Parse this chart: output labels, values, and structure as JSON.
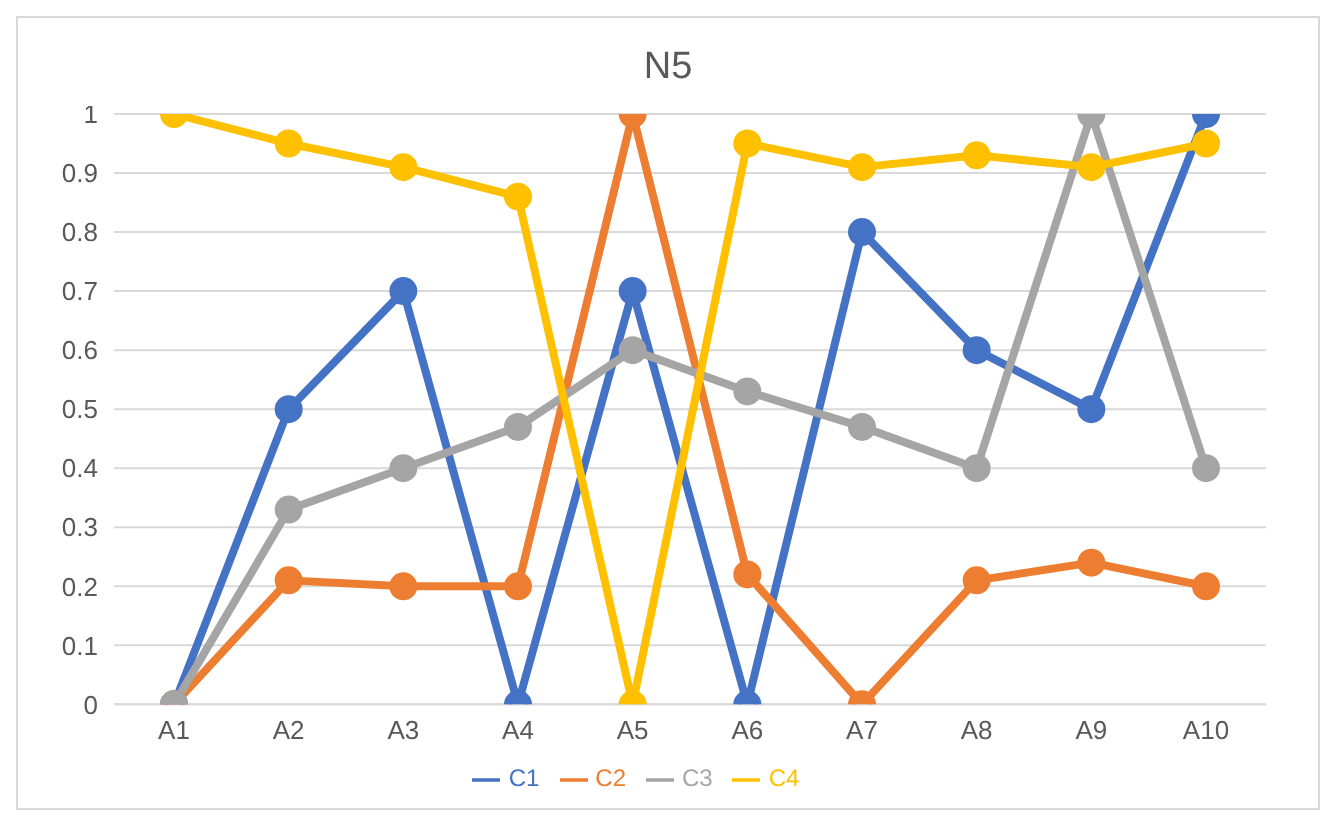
{
  "chart_data": {
    "type": "line",
    "title": "N5",
    "categories": [
      "A1",
      "A2",
      "A3",
      "A4",
      "A5",
      "A6",
      "A7",
      "A8",
      "A9",
      "A10"
    ],
    "series": [
      {
        "name": "C1",
        "color": "#4472c4",
        "values": [
          0,
          0.5,
          0.7,
          0,
          0.7,
          0,
          0.8,
          0.6,
          0.5,
          1
        ]
      },
      {
        "name": "C2",
        "color": "#ed7d31",
        "values": [
          0,
          0.21,
          0.2,
          0.2,
          1,
          0.22,
          0,
          0.21,
          0.24,
          0.2
        ]
      },
      {
        "name": "C3",
        "color": "#a5a5a5",
        "values": [
          0,
          0.33,
          0.4,
          0.47,
          0.6,
          0.53,
          0.47,
          0.4,
          1,
          0.4
        ]
      },
      {
        "name": "C4",
        "color": "#ffc000",
        "values": [
          1,
          0.95,
          0.91,
          0.86,
          0,
          0.95,
          0.91,
          0.93,
          0.91,
          0.95
        ]
      }
    ],
    "ylim": [
      0,
      1
    ],
    "yticks": [
      0,
      0.1,
      0.2,
      0.3,
      0.4,
      0.5,
      0.6,
      0.7,
      0.8,
      0.9,
      1
    ],
    "grid": "y",
    "legend": "bottom",
    "marker": "circle",
    "line_style": "solid"
  }
}
